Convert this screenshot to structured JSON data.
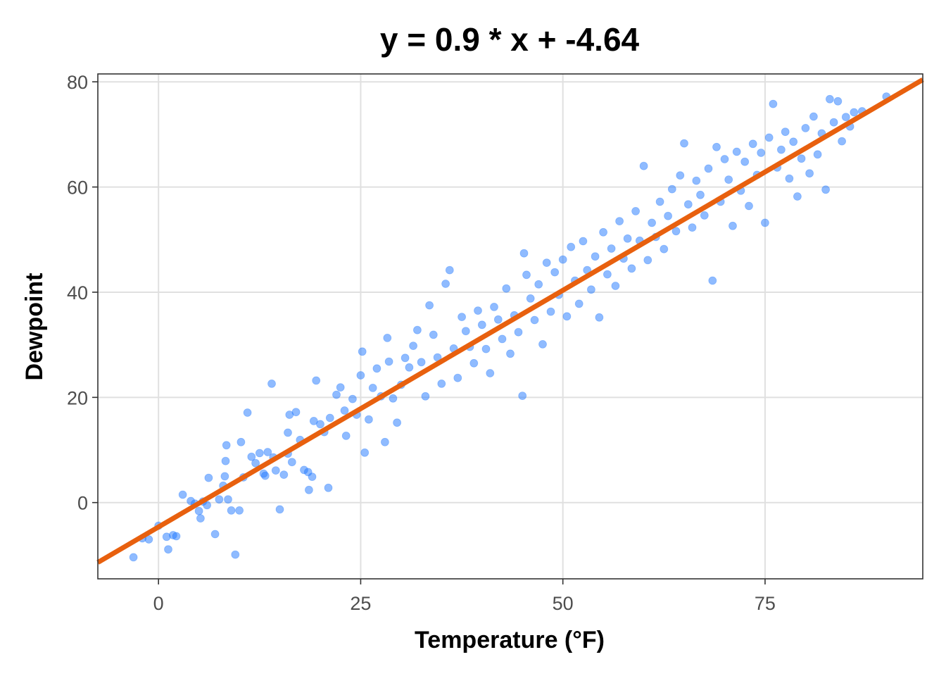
{
  "chart_data": {
    "type": "scatter",
    "title": "y = 0.9 * x + -4.64",
    "xlabel": "Temperature (°F)",
    "ylabel": "Dewpoint",
    "xlim": [
      -7.5,
      94.5
    ],
    "ylim": [
      -14.5,
      81.5
    ],
    "x_ticks": [
      0,
      25,
      50,
      75
    ],
    "y_ticks": [
      0,
      20,
      40,
      60,
      80
    ],
    "x_tick_labels": [
      "0",
      "25",
      "50",
      "75"
    ],
    "y_tick_labels": [
      "0",
      "20",
      "40",
      "60",
      "80"
    ],
    "grid": true,
    "legend": "none",
    "colors": {
      "points": "#1f78ff",
      "fit_line": "#e8600e"
    },
    "fit_line": {
      "slope": 0.9,
      "intercept": -4.64
    },
    "series": [
      {
        "points": [
          [
            -3.1,
            -10.4
          ],
          [
            -2,
            -6.8
          ],
          [
            -1.2,
            -7
          ],
          [
            0,
            -4.4
          ],
          [
            1,
            -6.5
          ],
          [
            1.2,
            -8.9
          ],
          [
            1.8,
            -6.2
          ],
          [
            2.2,
            -6.4
          ],
          [
            3,
            1.5
          ],
          [
            4,
            0.3
          ],
          [
            4.5,
            -0.2
          ],
          [
            5,
            -1.6
          ],
          [
            5.2,
            -3
          ],
          [
            5.5,
            0.2
          ],
          [
            6,
            -0.5
          ],
          [
            6.2,
            4.7
          ],
          [
            7,
            -6
          ],
          [
            7.5,
            0.6
          ],
          [
            8,
            3.2
          ],
          [
            8.2,
            5
          ],
          [
            8.3,
            7.9
          ],
          [
            8.4,
            10.9
          ],
          [
            8.6,
            0.6
          ],
          [
            9,
            -1.5
          ],
          [
            9.5,
            -9.9
          ],
          [
            10,
            -1.5
          ],
          [
            10.2,
            11.5
          ],
          [
            10.5,
            4.8
          ],
          [
            11,
            17.1
          ],
          [
            11.5,
            8.7
          ],
          [
            12,
            7.5
          ],
          [
            12.5,
            9.4
          ],
          [
            13,
            5.5
          ],
          [
            13.2,
            5.1
          ],
          [
            13.5,
            9.6
          ],
          [
            14,
            22.6
          ],
          [
            14.2,
            8.6
          ],
          [
            14.5,
            6.1
          ],
          [
            15,
            -1.3
          ],
          [
            15.5,
            5.3
          ],
          [
            16,
            9.3
          ],
          [
            16,
            13.3
          ],
          [
            16.2,
            16.7
          ],
          [
            16.5,
            7.7
          ],
          [
            17,
            17.2
          ],
          [
            17.5,
            11.9
          ],
          [
            18,
            6.2
          ],
          [
            18.5,
            5.8
          ],
          [
            18.6,
            2.4
          ],
          [
            19,
            4.9
          ],
          [
            19.2,
            15.5
          ],
          [
            19.5,
            23.2
          ],
          [
            20,
            14.9
          ],
          [
            20.5,
            13.4
          ],
          [
            21,
            2.8
          ],
          [
            21.2,
            16.1
          ],
          [
            22,
            20.5
          ],
          [
            22.5,
            21.9
          ],
          [
            23,
            17.5
          ],
          [
            23.2,
            12.7
          ],
          [
            24,
            19.7
          ],
          [
            24.5,
            16.7
          ],
          [
            25,
            24.2
          ],
          [
            25.2,
            28.7
          ],
          [
            25.5,
            9.5
          ],
          [
            26,
            15.8
          ],
          [
            26.5,
            21.8
          ],
          [
            27,
            25.5
          ],
          [
            27.5,
            20.2
          ],
          [
            28,
            11.5
          ],
          [
            28.3,
            31.3
          ],
          [
            28.5,
            26.8
          ],
          [
            29,
            19.8
          ],
          [
            29.5,
            15.2
          ],
          [
            30,
            22.4
          ],
          [
            30.5,
            27.5
          ],
          [
            31,
            25.7
          ],
          [
            31.5,
            29.8
          ],
          [
            32,
            32.8
          ],
          [
            32.5,
            26.7
          ],
          [
            33,
            20.2
          ],
          [
            33.5,
            37.5
          ],
          [
            34,
            31.9
          ],
          [
            34.5,
            27.6
          ],
          [
            35,
            22.6
          ],
          [
            35.5,
            41.6
          ],
          [
            36,
            44.2
          ],
          [
            36.5,
            29.3
          ],
          [
            37,
            23.7
          ],
          [
            37.5,
            35.3
          ],
          [
            38,
            32.6
          ],
          [
            38.5,
            29.6
          ],
          [
            39,
            26.5
          ],
          [
            39.5,
            36.5
          ],
          [
            40,
            33.8
          ],
          [
            40.5,
            29.2
          ],
          [
            41,
            24.6
          ],
          [
            41.5,
            37.2
          ],
          [
            42,
            34.8
          ],
          [
            42.5,
            31.1
          ],
          [
            43,
            40.7
          ],
          [
            43.5,
            28.3
          ],
          [
            44,
            35.6
          ],
          [
            44.5,
            32.4
          ],
          [
            45,
            20.3
          ],
          [
            45.2,
            47.4
          ],
          [
            45.5,
            43.3
          ],
          [
            46,
            38.8
          ],
          [
            46.5,
            34.7
          ],
          [
            47,
            41.5
          ],
          [
            47.5,
            30.1
          ],
          [
            48,
            45.6
          ],
          [
            48.5,
            36.3
          ],
          [
            49,
            43.8
          ],
          [
            49.5,
            39.5
          ],
          [
            50,
            46.2
          ],
          [
            50.5,
            35.4
          ],
          [
            51,
            48.6
          ],
          [
            51.5,
            42.2
          ],
          [
            52,
            37.8
          ],
          [
            52.5,
            49.7
          ],
          [
            53,
            44.2
          ],
          [
            53.5,
            40.5
          ],
          [
            54,
            46.8
          ],
          [
            54.5,
            35.2
          ],
          [
            55,
            51.4
          ],
          [
            55.5,
            43.4
          ],
          [
            56,
            48.3
          ],
          [
            56.5,
            41.2
          ],
          [
            57,
            53.5
          ],
          [
            57.5,
            46.4
          ],
          [
            58,
            50.2
          ],
          [
            58.5,
            44.5
          ],
          [
            59,
            55.4
          ],
          [
            59.5,
            49.8
          ],
          [
            60,
            64
          ],
          [
            60.5,
            46.1
          ],
          [
            61,
            53.2
          ],
          [
            61.5,
            50.5
          ],
          [
            62,
            57.2
          ],
          [
            62.5,
            48.2
          ],
          [
            63,
            54.5
          ],
          [
            63.5,
            59.6
          ],
          [
            64,
            51.6
          ],
          [
            64.5,
            62.2
          ],
          [
            65,
            68.3
          ],
          [
            65.5,
            56.7
          ],
          [
            66,
            52.3
          ],
          [
            66.5,
            61.2
          ],
          [
            67,
            58.5
          ],
          [
            67.5,
            54.6
          ],
          [
            68,
            63.5
          ],
          [
            68.5,
            42.2
          ],
          [
            69,
            67.6
          ],
          [
            69.5,
            57.2
          ],
          [
            70,
            65.3
          ],
          [
            70.5,
            61.4
          ],
          [
            71,
            52.6
          ],
          [
            71.5,
            66.7
          ],
          [
            72,
            59.3
          ],
          [
            72.5,
            64.8
          ],
          [
            73,
            56.4
          ],
          [
            73.5,
            68.2
          ],
          [
            74,
            62.3
          ],
          [
            74.5,
            66.5
          ],
          [
            75,
            53.2
          ],
          [
            75.5,
            69.4
          ],
          [
            76,
            75.8
          ],
          [
            76.5,
            63.7
          ],
          [
            77,
            67.1
          ],
          [
            77.5,
            70.5
          ],
          [
            78,
            61.6
          ],
          [
            78.5,
            68.6
          ],
          [
            79,
            58.2
          ],
          [
            79.5,
            65.4
          ],
          [
            80,
            71.2
          ],
          [
            80.5,
            62.6
          ],
          [
            81,
            73.4
          ],
          [
            81.5,
            66.2
          ],
          [
            82,
            70.2
          ],
          [
            82.5,
            59.5
          ],
          [
            83,
            76.7
          ],
          [
            83.5,
            72.3
          ],
          [
            84,
            76.3
          ],
          [
            84.5,
            68.7
          ],
          [
            85,
            73.3
          ],
          [
            85.5,
            71.5
          ],
          [
            86,
            74.2
          ],
          [
            87,
            74.4
          ],
          [
            90,
            77.2
          ]
        ]
      }
    ]
  }
}
